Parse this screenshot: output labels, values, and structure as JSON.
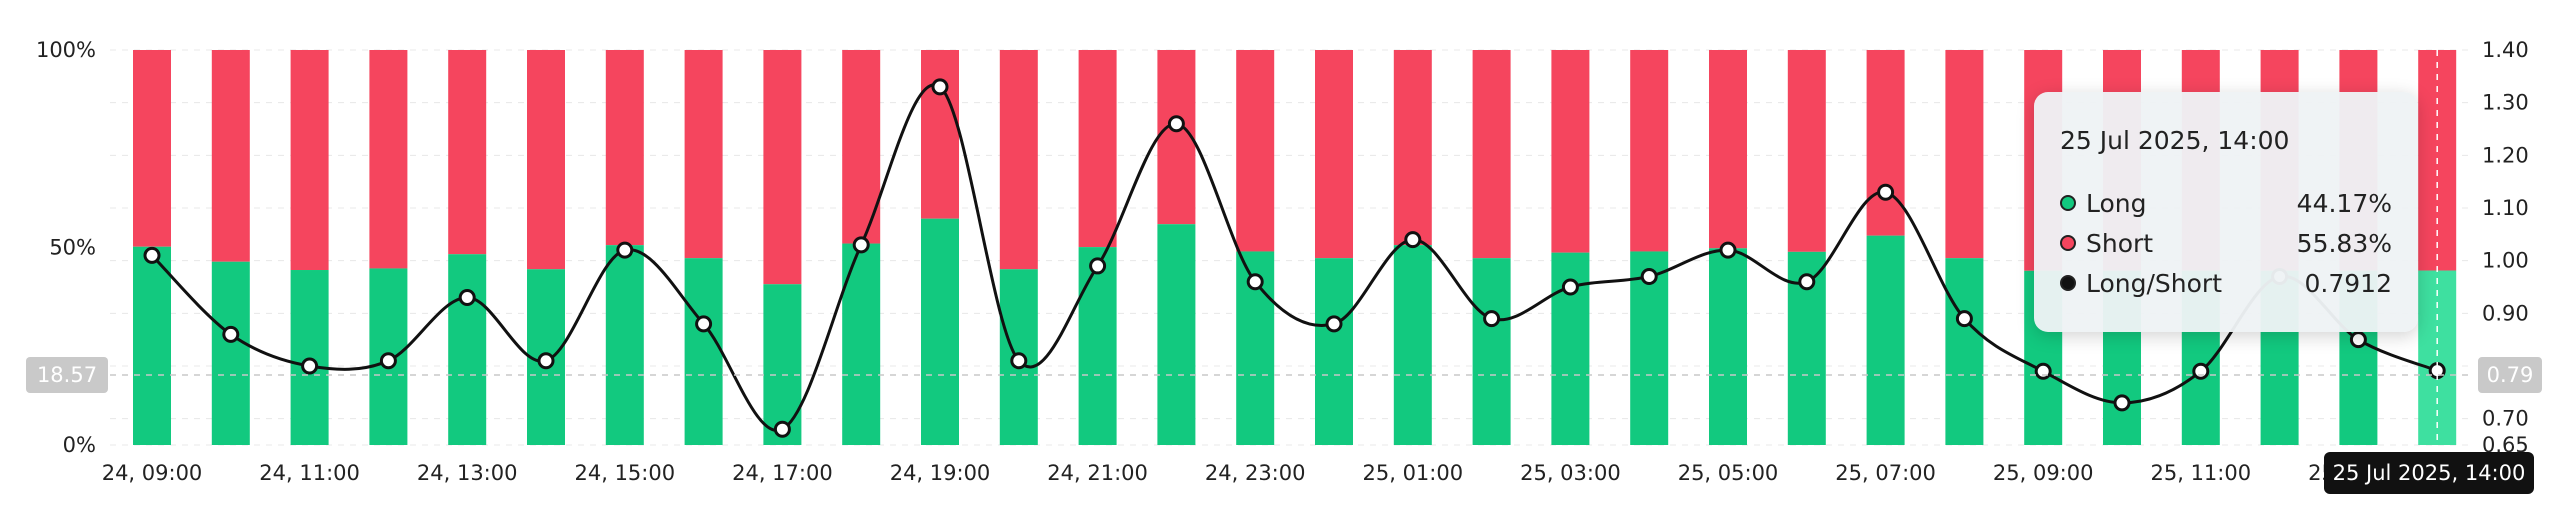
{
  "chart_data": {
    "type": "bar",
    "stacked": true,
    "categories": [
      "24, 09:00",
      "24, 10:00",
      "24, 11:00",
      "24, 12:00",
      "24, 13:00",
      "24, 14:00",
      "24, 15:00",
      "24, 16:00",
      "24, 17:00",
      "24, 18:00",
      "24, 19:00",
      "24, 20:00",
      "24, 21:00",
      "24, 22:00",
      "24, 23:00",
      "25, 00:00",
      "25, 01:00",
      "25, 02:00",
      "25, 03:00",
      "25, 04:00",
      "25, 05:00",
      "25, 06:00",
      "25, 07:00",
      "25, 08:00",
      "25, 09:00",
      "25, 10:00",
      "25, 11:00",
      "25, 12:00",
      "25, 13:00",
      "25, 14:00"
    ],
    "x_tick_labels": [
      "24, 09:00",
      "24, 11:00",
      "24, 13:00",
      "24, 15:00",
      "24, 17:00",
      "24, 19:00",
      "24, 21:00",
      "24, 23:00",
      "25, 01:00",
      "25, 03:00",
      "25, 05:00",
      "25, 07:00",
      "25, 09:00",
      "25, 11:00",
      "25, 13:00"
    ],
    "series": [
      {
        "name": "Long",
        "color": "#12c97f",
        "axis": "left",
        "values": [
          50.2,
          46.4,
          44.3,
          44.7,
          48.3,
          44.5,
          50.6,
          47.3,
          40.7,
          51.0,
          57.3,
          44.5,
          50.1,
          55.9,
          49.0,
          47.3,
          50.6,
          47.3,
          48.7,
          49.0,
          49.8,
          48.9,
          53.0,
          47.3,
          44.1,
          44.1,
          44.1,
          44.1,
          44.1,
          44.17
        ]
      },
      {
        "name": "Short",
        "color": "#f5455e",
        "axis": "left",
        "values": [
          49.8,
          53.6,
          55.7,
          55.3,
          51.7,
          55.5,
          49.4,
          52.7,
          59.3,
          49.0,
          42.7,
          55.5,
          49.9,
          44.1,
          51.0,
          52.7,
          49.4,
          52.7,
          51.3,
          51.0,
          50.2,
          51.1,
          47.0,
          52.7,
          55.9,
          55.9,
          55.9,
          55.9,
          55.9,
          55.83
        ]
      },
      {
        "name": "Long/Short",
        "color": "#111111",
        "type": "line",
        "axis": "right",
        "values": [
          1.01,
          0.86,
          0.8,
          0.81,
          0.93,
          0.81,
          1.02,
          0.88,
          0.68,
          1.03,
          1.33,
          0.81,
          0.99,
          1.26,
          0.96,
          0.88,
          1.04,
          0.89,
          0.95,
          0.97,
          1.02,
          0.96,
          1.13,
          0.89,
          0.79,
          0.73,
          0.79,
          0.97,
          0.85,
          0.7912
        ]
      }
    ],
    "y_left": {
      "ticks": [
        "0%",
        "50%",
        "100%"
      ],
      "ylim": [
        0,
        100
      ]
    },
    "y_right": {
      "ticks": [
        "0.65",
        "0.70",
        "0.80",
        "0.90",
        "1.00",
        "1.10",
        "1.20",
        "1.30",
        "1.40"
      ],
      "ylim": [
        0.65,
        1.4
      ]
    },
    "grid": true,
    "hover_left_value": "18.57",
    "hover_right_value": "0.79",
    "tooltip": {
      "title": "25 Jul 2025, 14:00",
      "rows": [
        {
          "label": "Long",
          "value": "44.17%",
          "color": "#12c97f"
        },
        {
          "label": "Short",
          "value": "55.83%",
          "color": "#f5455e"
        },
        {
          "label": "Long/Short",
          "value": "0.7912",
          "color": "#111111"
        }
      ]
    },
    "crosshair_label": "25 Jul 2025, 14:00"
  }
}
